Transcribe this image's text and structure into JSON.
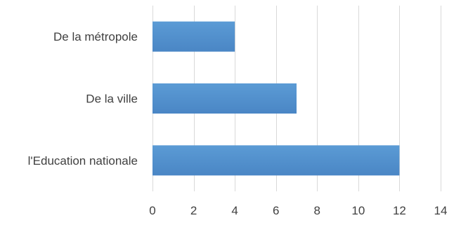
{
  "chart_data": {
    "type": "bar",
    "orientation": "horizontal",
    "categories": [
      "De la métropole",
      "De la ville",
      "l'Education nationale"
    ],
    "values": [
      4,
      7,
      12
    ],
    "xlim": [
      0,
      14
    ],
    "xticks": [
      0,
      2,
      4,
      6,
      8,
      10,
      12,
      14
    ],
    "grid": true,
    "legend": "none",
    "bar_color": "#5b9bd5",
    "bar_color_dark": "#4a86c5"
  }
}
